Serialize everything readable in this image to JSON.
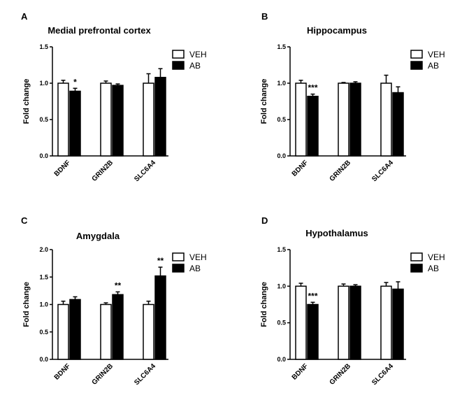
{
  "figure": {
    "legend": [
      {
        "name": "VEH",
        "color": "#ffffff"
      },
      {
        "name": "AB",
        "color": "#000000"
      }
    ]
  },
  "chart_data": [
    {
      "panel": "A",
      "type": "bar",
      "title": "Medial prefrontal cortex",
      "ylabel": "Fold change",
      "xlabel": "",
      "categories": [
        "BDNF",
        "GRIN2B",
        "SLC6A4"
      ],
      "ylim": [
        0,
        1.5
      ],
      "yticks": [
        "0.0",
        "0.5",
        "1.0",
        "1.5"
      ],
      "legend_position": "top-right",
      "grid": false,
      "series": [
        {
          "name": "VEH",
          "values": [
            1.0,
            1.0,
            1.0
          ],
          "errors": [
            0.04,
            0.03,
            0.13
          ]
        },
        {
          "name": "AB",
          "values": [
            0.89,
            0.97,
            1.08
          ],
          "errors": [
            0.04,
            0.02,
            0.12
          ]
        }
      ],
      "annotations": [
        {
          "category": "BDNF",
          "series": "AB",
          "text": "*"
        }
      ]
    },
    {
      "panel": "B",
      "type": "bar",
      "title": "Hippocampus",
      "ylabel": "Fold change",
      "xlabel": "",
      "categories": [
        "BDNF",
        "GRIN2B",
        "SLC6A4"
      ],
      "ylim": [
        0,
        1.5
      ],
      "yticks": [
        "0.0",
        "0.5",
        "1.0",
        "1.5"
      ],
      "legend_position": "top-right",
      "grid": false,
      "series": [
        {
          "name": "VEH",
          "values": [
            1.0,
            1.0,
            1.0
          ],
          "errors": [
            0.04,
            0.01,
            0.11
          ]
        },
        {
          "name": "AB",
          "values": [
            0.82,
            1.0,
            0.87
          ],
          "errors": [
            0.03,
            0.02,
            0.08
          ]
        }
      ],
      "annotations": [
        {
          "category": "BDNF",
          "series": "AB",
          "text": "***"
        }
      ]
    },
    {
      "panel": "C",
      "type": "bar",
      "title": "Amygdala",
      "ylabel": "Fold change",
      "xlabel": "",
      "categories": [
        "BDNF",
        "GRIN2B",
        "SLC6A4"
      ],
      "ylim": [
        0,
        2.0
      ],
      "yticks": [
        "0.0",
        "0.5",
        "1.0",
        "1.5",
        "2.0"
      ],
      "legend_position": "top-right",
      "grid": false,
      "series": [
        {
          "name": "VEH",
          "values": [
            1.0,
            1.0,
            1.0
          ],
          "errors": [
            0.06,
            0.03,
            0.06
          ]
        },
        {
          "name": "AB",
          "values": [
            1.09,
            1.18,
            1.52
          ],
          "errors": [
            0.05,
            0.05,
            0.16
          ]
        }
      ],
      "annotations": [
        {
          "category": "GRIN2B",
          "series": "AB",
          "text": "**"
        },
        {
          "category": "SLC6A4",
          "series": "AB",
          "text": "**"
        }
      ]
    },
    {
      "panel": "D",
      "type": "bar",
      "title": "Hypothalamus",
      "ylabel": "Fold change",
      "xlabel": "",
      "categories": [
        "BDNF",
        "GRIN2B",
        "SLC6A4"
      ],
      "ylim": [
        0,
        1.5
      ],
      "yticks": [
        "0.0",
        "0.5",
        "1.0",
        "1.5"
      ],
      "legend_position": "top-right",
      "grid": false,
      "series": [
        {
          "name": "VEH",
          "values": [
            1.0,
            1.0,
            1.0
          ],
          "errors": [
            0.04,
            0.03,
            0.05
          ]
        },
        {
          "name": "AB",
          "values": [
            0.75,
            1.0,
            0.96
          ],
          "errors": [
            0.03,
            0.02,
            0.1
          ]
        }
      ],
      "annotations": [
        {
          "category": "BDNF",
          "series": "AB",
          "text": "***"
        }
      ]
    }
  ]
}
